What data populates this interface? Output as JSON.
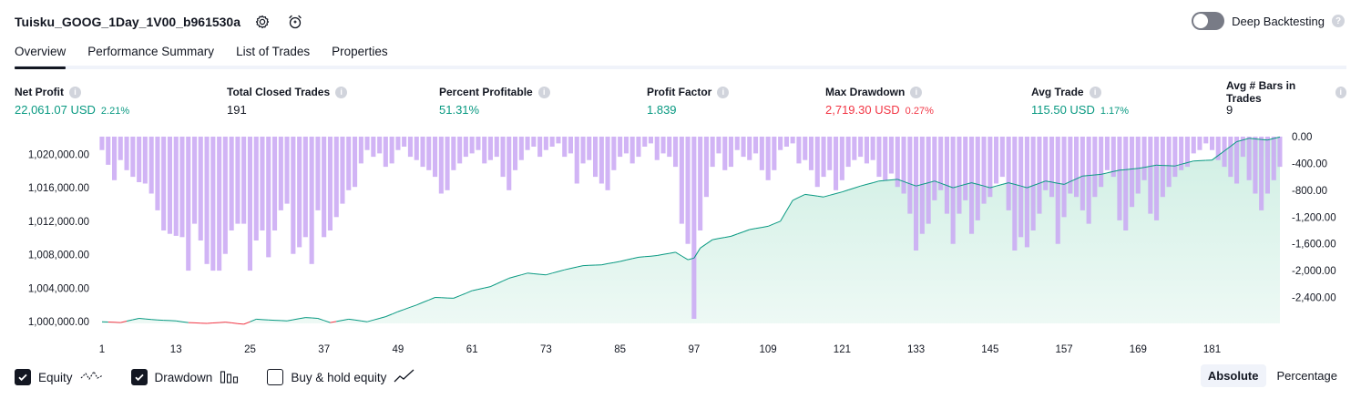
{
  "header": {
    "strategy_name": "Tuisku_GOOG_1Day_1V00_b961530a",
    "settings_icon": "gear-icon",
    "alert_icon": "alarm-clock-icon",
    "deep_backtesting_label": "Deep Backtesting",
    "deep_backtesting_on": false
  },
  "tabs": [
    {
      "label": "Overview",
      "active": true
    },
    {
      "label": "Performance Summary",
      "active": false
    },
    {
      "label": "List of Trades",
      "active": false
    },
    {
      "label": "Properties",
      "active": false
    }
  ],
  "metrics": [
    {
      "label": "Net Profit",
      "value": "22,061.07 USD",
      "pct": "2.21%",
      "tone": "pos"
    },
    {
      "label": "Total Closed Trades",
      "value": "191",
      "pct": "",
      "tone": "neu"
    },
    {
      "label": "Percent Profitable",
      "value": "51.31%",
      "pct": "",
      "tone": "pos"
    },
    {
      "label": "Profit Factor",
      "value": "1.839",
      "pct": "",
      "tone": "pos"
    },
    {
      "label": "Max Drawdown",
      "value": "2,719.30 USD",
      "pct": "0.27%",
      "tone": "neg"
    },
    {
      "label": "Avg Trade",
      "value": "115.50 USD",
      "pct": "1.17%",
      "tone": "pos"
    },
    {
      "label": "Avg # Bars in Trades",
      "value": "9",
      "pct": "",
      "tone": "neu"
    }
  ],
  "legend": {
    "equity_label": "Equity",
    "equity_checked": true,
    "drawdown_label": "Drawdown",
    "drawdown_checked": true,
    "buyhold_label": "Buy & hold equity",
    "buyhold_checked": false
  },
  "mode": {
    "absolute_label": "Absolute",
    "percentage_label": "Percentage",
    "active": "absolute"
  },
  "colors": {
    "equity_up": "#089981",
    "equity_down": "#f23645",
    "equity_fill": "#cdeee2",
    "drawdown_bar": "#c9a7f3",
    "text": "#131722"
  },
  "chart_data": {
    "type": "bar+area",
    "x_ticks": [
      1,
      13,
      25,
      37,
      49,
      61,
      73,
      85,
      97,
      109,
      121,
      133,
      145,
      157,
      169,
      181
    ],
    "x_range": [
      1,
      192
    ],
    "left_axis": {
      "ticks": [
        "1,000,000.00",
        "1,004,000.00",
        "1,008,000.00",
        "1,012,000.00",
        "1,016,000.00",
        "1,020,000.00"
      ],
      "tick_values": [
        1000000,
        1004000,
        1008000,
        1012000,
        1016000,
        1020000
      ],
      "range": [
        999800,
        1022100
      ]
    },
    "right_axis": {
      "ticks": [
        "0.00",
        "-400.00",
        "-800.00",
        "-1,200.00",
        "-1,600.00",
        "-2,000.00",
        "-2,400.00"
      ],
      "tick_values": [
        0,
        -400,
        -800,
        -1200,
        -1600,
        -2000,
        -2400
      ],
      "range": [
        -2719,
        0
      ]
    },
    "equity_anchors": [
      [
        1,
        1000000
      ],
      [
        4,
        999900
      ],
      [
        7,
        1000400
      ],
      [
        10,
        1000200
      ],
      [
        13,
        1000100
      ],
      [
        15,
        999900
      ],
      [
        18,
        999800
      ],
      [
        21,
        999950
      ],
      [
        24,
        999700
      ],
      [
        26,
        1000300
      ],
      [
        28,
        1000200
      ],
      [
        31,
        1000100
      ],
      [
        34,
        1000500
      ],
      [
        36,
        1000400
      ],
      [
        38,
        999900
      ],
      [
        41,
        1000300
      ],
      [
        44,
        1000000
      ],
      [
        47,
        1000600
      ],
      [
        49,
        1001200
      ],
      [
        52,
        1002000
      ],
      [
        55,
        1002900
      ],
      [
        58,
        1002800
      ],
      [
        61,
        1003700
      ],
      [
        64,
        1004200
      ],
      [
        67,
        1005200
      ],
      [
        70,
        1005800
      ],
      [
        73,
        1005600
      ],
      [
        76,
        1006200
      ],
      [
        79,
        1006700
      ],
      [
        82,
        1006800
      ],
      [
        85,
        1007200
      ],
      [
        88,
        1007700
      ],
      [
        91,
        1007900
      ],
      [
        94,
        1008300
      ],
      [
        96,
        1007400
      ],
      [
        97,
        1007600
      ],
      [
        98,
        1008800
      ],
      [
        100,
        1009800
      ],
      [
        103,
        1010200
      ],
      [
        106,
        1011000
      ],
      [
        109,
        1011400
      ],
      [
        111,
        1012000
      ],
      [
        113,
        1014500
      ],
      [
        115,
        1015200
      ],
      [
        118,
        1014900
      ],
      [
        121,
        1015500
      ],
      [
        124,
        1016200
      ],
      [
        127,
        1016800
      ],
      [
        130,
        1017000
      ],
      [
        133,
        1016200
      ],
      [
        136,
        1016800
      ],
      [
        139,
        1016000
      ],
      [
        142,
        1016600
      ],
      [
        145,
        1016000
      ],
      [
        148,
        1016600
      ],
      [
        151,
        1016000
      ],
      [
        154,
        1016800
      ],
      [
        157,
        1016400
      ],
      [
        160,
        1017400
      ],
      [
        163,
        1017600
      ],
      [
        166,
        1018100
      ],
      [
        169,
        1018300
      ],
      [
        172,
        1018700
      ],
      [
        175,
        1018600
      ],
      [
        178,
        1019200
      ],
      [
        181,
        1019300
      ],
      [
        183,
        1020400
      ],
      [
        185,
        1021500
      ],
      [
        187,
        1021900
      ],
      [
        190,
        1021700
      ],
      [
        192,
        1022061
      ]
    ],
    "drawdown_anchors": [
      [
        1,
        -200
      ],
      [
        2,
        -420
      ],
      [
        3,
        -650
      ],
      [
        4,
        -350
      ],
      [
        5,
        -500
      ],
      [
        6,
        -600
      ],
      [
        7,
        -680
      ],
      [
        8,
        -700
      ],
      [
        9,
        -850
      ],
      [
        10,
        -1100
      ],
      [
        11,
        -1400
      ],
      [
        12,
        -1450
      ],
      [
        13,
        -1480
      ],
      [
        14,
        -1500
      ],
      [
        15,
        -2000
      ],
      [
        16,
        -1300
      ],
      [
        17,
        -1550
      ],
      [
        18,
        -1900
      ],
      [
        19,
        -2000
      ],
      [
        20,
        -2000
      ],
      [
        21,
        -1750
      ],
      [
        22,
        -1400
      ],
      [
        23,
        -1300
      ],
      [
        24,
        -1300
      ],
      [
        25,
        -2000
      ],
      [
        26,
        -1550
      ],
      [
        27,
        -1400
      ],
      [
        28,
        -1800
      ],
      [
        29,
        -1400
      ],
      [
        30,
        -1100
      ],
      [
        31,
        -1000
      ],
      [
        32,
        -1750
      ],
      [
        33,
        -1650
      ],
      [
        34,
        -1500
      ],
      [
        35,
        -1900
      ],
      [
        36,
        -1100
      ],
      [
        37,
        -1500
      ],
      [
        38,
        -1400
      ],
      [
        39,
        -1200
      ],
      [
        40,
        -1000
      ],
      [
        41,
        -800
      ],
      [
        42,
        -750
      ],
      [
        43,
        -400
      ],
      [
        44,
        -200
      ],
      [
        45,
        -300
      ],
      [
        46,
        -250
      ],
      [
        47,
        -450
      ],
      [
        48,
        -400
      ],
      [
        49,
        -200
      ],
      [
        50,
        -150
      ],
      [
        51,
        -300
      ],
      [
        52,
        -350
      ],
      [
        53,
        -450
      ],
      [
        54,
        -500
      ],
      [
        55,
        -600
      ],
      [
        56,
        -850
      ],
      [
        57,
        -800
      ],
      [
        58,
        -500
      ],
      [
        59,
        -400
      ],
      [
        60,
        -300
      ],
      [
        61,
        -250
      ],
      [
        62,
        -200
      ],
      [
        63,
        -400
      ],
      [
        64,
        -350
      ],
      [
        65,
        -300
      ],
      [
        66,
        -600
      ],
      [
        67,
        -800
      ],
      [
        68,
        -500
      ],
      [
        69,
        -350
      ],
      [
        70,
        -200
      ],
      [
        71,
        -150
      ],
      [
        72,
        -300
      ],
      [
        73,
        -200
      ],
      [
        74,
        -150
      ],
      [
        75,
        -100
      ],
      [
        76,
        -300
      ],
      [
        77,
        -250
      ],
      [
        78,
        -700
      ],
      [
        79,
        -400
      ],
      [
        80,
        -350
      ],
      [
        81,
        -600
      ],
      [
        82,
        -700
      ],
      [
        83,
        -800
      ],
      [
        84,
        -500
      ],
      [
        85,
        -300
      ],
      [
        86,
        -250
      ],
      [
        87,
        -400
      ],
      [
        88,
        -300
      ],
      [
        89,
        -150
      ],
      [
        90,
        -100
      ],
      [
        91,
        -350
      ],
      [
        92,
        -250
      ],
      [
        93,
        -300
      ],
      [
        94,
        -450
      ],
      [
        95,
        -1300
      ],
      [
        96,
        -1600
      ],
      [
        97,
        -2719
      ],
      [
        98,
        -1400
      ],
      [
        99,
        -900
      ],
      [
        100,
        -450
      ],
      [
        101,
        -250
      ],
      [
        102,
        -500
      ],
      [
        103,
        -450
      ],
      [
        104,
        -200
      ],
      [
        105,
        -300
      ],
      [
        106,
        -350
      ],
      [
        107,
        -250
      ],
      [
        108,
        -500
      ],
      [
        109,
        -650
      ],
      [
        110,
        -500
      ],
      [
        111,
        -200
      ],
      [
        112,
        -150
      ],
      [
        113,
        -100
      ],
      [
        114,
        -400
      ],
      [
        115,
        -350
      ],
      [
        116,
        -500
      ],
      [
        117,
        -750
      ],
      [
        118,
        -600
      ],
      [
        119,
        -500
      ],
      [
        120,
        -800
      ],
      [
        121,
        -650
      ],
      [
        122,
        -450
      ],
      [
        123,
        -350
      ],
      [
        124,
        -300
      ],
      [
        125,
        -400
      ],
      [
        126,
        -350
      ],
      [
        127,
        -600
      ],
      [
        128,
        -650
      ],
      [
        129,
        -550
      ],
      [
        130,
        -750
      ],
      [
        131,
        -850
      ],
      [
        132,
        -1150
      ],
      [
        133,
        -1700
      ],
      [
        134,
        -1450
      ],
      [
        135,
        -1300
      ],
      [
        136,
        -950
      ],
      [
        137,
        -800
      ],
      [
        138,
        -1150
      ],
      [
        139,
        -1600
      ],
      [
        140,
        -1150
      ],
      [
        141,
        -950
      ],
      [
        142,
        -1450
      ],
      [
        143,
        -1250
      ],
      [
        144,
        -1000
      ],
      [
        145,
        -900
      ],
      [
        146,
        -700
      ],
      [
        147,
        -600
      ],
      [
        148,
        -1100
      ],
      [
        149,
        -1700
      ],
      [
        150,
        -1500
      ],
      [
        151,
        -1650
      ],
      [
        152,
        -1400
      ],
      [
        153,
        -1150
      ],
      [
        154,
        -800
      ],
      [
        155,
        -900
      ],
      [
        156,
        -1600
      ],
      [
        157,
        -1200
      ],
      [
        158,
        -850
      ],
      [
        159,
        -900
      ],
      [
        160,
        -1100
      ],
      [
        161,
        -1300
      ],
      [
        162,
        -900
      ],
      [
        163,
        -750
      ],
      [
        164,
        -500
      ],
      [
        165,
        -600
      ],
      [
        166,
        -1250
      ],
      [
        167,
        -1400
      ],
      [
        168,
        -1050
      ],
      [
        169,
        -850
      ],
      [
        170,
        -650
      ],
      [
        171,
        -1150
      ],
      [
        172,
        -1250
      ],
      [
        173,
        -900
      ],
      [
        174,
        -750
      ],
      [
        175,
        -600
      ],
      [
        176,
        -500
      ],
      [
        177,
        -450
      ],
      [
        178,
        -250
      ],
      [
        179,
        -200
      ],
      [
        180,
        -100
      ],
      [
        181,
        -200
      ],
      [
        182,
        -350
      ],
      [
        183,
        -450
      ],
      [
        184,
        -600
      ],
      [
        185,
        -700
      ],
      [
        186,
        -300
      ],
      [
        187,
        -650
      ],
      [
        188,
        -850
      ],
      [
        189,
        -1100
      ],
      [
        190,
        -850
      ],
      [
        191,
        -650
      ],
      [
        192,
        -450
      ]
    ]
  }
}
